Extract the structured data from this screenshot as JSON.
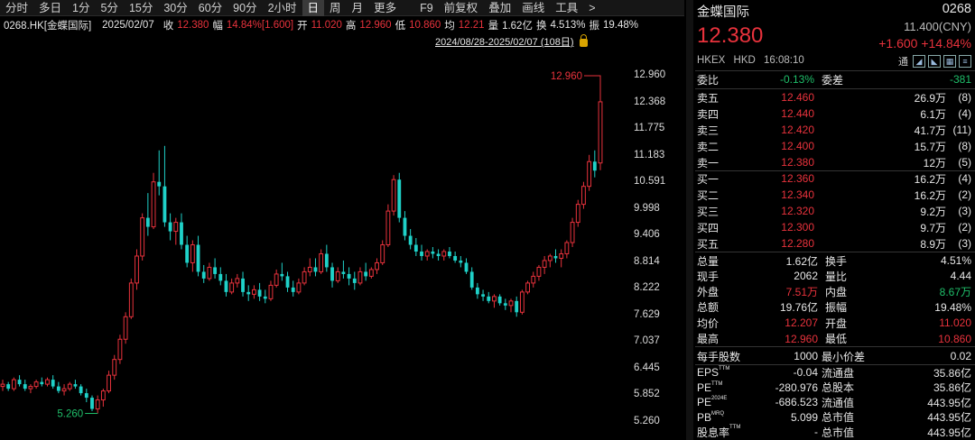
{
  "toolbar": {
    "items": [
      "分时",
      "多日",
      "1分",
      "5分",
      "15分",
      "30分",
      "60分",
      "90分",
      "2小时",
      "日",
      "周",
      "月",
      "更多"
    ],
    "active": "日",
    "extra": [
      "F9",
      "前复权",
      "叠加",
      "画线",
      "工具"
    ],
    "more_arrow": ">"
  },
  "infobar": {
    "symbol": "0268.HK[金蝶国际]",
    "date": "2025/02/07",
    "close_label": "收",
    "close": "12.380",
    "amp_label": "幅",
    "amp": "14.84%[1.600]",
    "open_label": "开",
    "open": "11.020",
    "high_label": "高",
    "high": "12.960",
    "low_label": "低",
    "low": "10.860",
    "avg_label": "均",
    "avg": "12.21",
    "vol_label": "量",
    "vol": "1.62亿",
    "turn_label": "换",
    "turn": "4.513%",
    "swing_label": "振",
    "swing": "19.48%"
  },
  "range": {
    "text": "2024/08/28-2025/02/07 (108日)"
  },
  "chart_data": {
    "type": "candlestick",
    "yticks": [
      "12.960",
      "12.368",
      "11.775",
      "11.183",
      "10.591",
      "9.998",
      "9.406",
      "8.814",
      "8.222",
      "7.629",
      "7.037",
      "6.445",
      "5.852",
      "5.260"
    ],
    "ylim": [
      5.26,
      12.96
    ],
    "max_label": "12.960",
    "min_label": "5.260",
    "colors": {
      "up": "#e8323c",
      "down": "#1fd1c8",
      "text_red": "#e8323c",
      "text_green": "#1fbf6a"
    },
    "candles": [
      [
        6.05,
        6.2,
        5.95,
        6.1
      ],
      [
        6.1,
        6.15,
        5.95,
        6.0
      ],
      [
        6.0,
        6.25,
        5.95,
        6.2
      ],
      [
        6.2,
        6.3,
        6.05,
        6.1
      ],
      [
        6.1,
        6.2,
        5.95,
        6.0
      ],
      [
        6.0,
        6.1,
        5.9,
        6.05
      ],
      [
        6.05,
        6.2,
        6.0,
        6.15
      ],
      [
        6.15,
        6.25,
        6.05,
        6.1
      ],
      [
        6.1,
        6.25,
        6.05,
        6.2
      ],
      [
        6.2,
        6.3,
        6.0,
        6.05
      ],
      [
        6.05,
        6.15,
        5.9,
        5.95
      ],
      [
        5.95,
        6.1,
        5.85,
        6.0
      ],
      [
        6.0,
        6.15,
        5.95,
        6.1
      ],
      [
        6.1,
        6.2,
        6.0,
        6.05
      ],
      [
        6.05,
        6.1,
        5.85,
        5.9
      ],
      [
        5.9,
        6.0,
        5.7,
        5.8
      ],
      [
        5.8,
        5.85,
        5.5,
        5.55
      ],
      [
        5.55,
        5.85,
        5.45,
        5.75
      ],
      [
        5.75,
        6.0,
        5.6,
        5.95
      ],
      [
        5.95,
        6.4,
        5.9,
        6.3
      ],
      [
        6.3,
        6.75,
        6.2,
        6.65
      ],
      [
        6.65,
        7.2,
        6.55,
        7.1
      ],
      [
        7.1,
        7.7,
        7.0,
        7.6
      ],
      [
        7.6,
        8.45,
        7.55,
        8.35
      ],
      [
        8.35,
        9.1,
        8.2,
        8.95
      ],
      [
        8.95,
        9.9,
        8.85,
        9.8
      ],
      [
        9.8,
        10.35,
        9.4,
        9.6
      ],
      [
        9.6,
        10.8,
        9.55,
        10.6
      ],
      [
        10.6,
        11.3,
        10.3,
        10.5
      ],
      [
        10.5,
        11.4,
        9.6,
        9.7
      ],
      [
        9.7,
        9.9,
        9.3,
        9.5
      ],
      [
        9.5,
        9.8,
        9.2,
        9.7
      ],
      [
        9.7,
        9.9,
        9.1,
        9.2
      ],
      [
        9.2,
        9.4,
        8.7,
        8.8
      ],
      [
        8.8,
        9.3,
        8.6,
        9.2
      ],
      [
        9.2,
        9.4,
        8.5,
        8.6
      ],
      [
        8.6,
        8.75,
        8.35,
        8.45
      ],
      [
        8.45,
        8.8,
        8.4,
        8.7
      ],
      [
        8.7,
        8.9,
        8.45,
        8.55
      ],
      [
        8.55,
        8.7,
        8.3,
        8.4
      ],
      [
        8.4,
        8.55,
        8.05,
        8.15
      ],
      [
        8.15,
        8.45,
        8.1,
        8.35
      ],
      [
        8.35,
        8.55,
        8.25,
        8.45
      ],
      [
        8.45,
        8.6,
        8.05,
        8.15
      ],
      [
        8.15,
        8.3,
        7.95,
        8.1
      ],
      [
        8.1,
        8.3,
        8.0,
        8.2
      ],
      [
        8.2,
        8.35,
        7.95,
        8.05
      ],
      [
        8.05,
        8.2,
        7.9,
        8.0
      ],
      [
        8.0,
        8.4,
        7.95,
        8.3
      ],
      [
        8.3,
        8.65,
        8.25,
        8.55
      ],
      [
        8.55,
        8.8,
        8.4,
        8.5
      ],
      [
        8.5,
        8.6,
        8.15,
        8.25
      ],
      [
        8.25,
        8.4,
        8.05,
        8.15
      ],
      [
        8.15,
        8.45,
        8.1,
        8.35
      ],
      [
        8.35,
        8.7,
        8.3,
        8.6
      ],
      [
        8.6,
        8.9,
        8.5,
        8.7
      ],
      [
        8.7,
        8.9,
        8.5,
        8.6
      ],
      [
        8.6,
        9.1,
        8.55,
        9.0
      ],
      [
        9.0,
        9.2,
        8.6,
        8.7
      ],
      [
        8.7,
        8.8,
        8.25,
        8.4
      ],
      [
        8.4,
        8.7,
        8.35,
        8.6
      ],
      [
        8.6,
        8.85,
        8.45,
        8.55
      ],
      [
        8.55,
        8.7,
        8.3,
        8.45
      ],
      [
        8.45,
        8.6,
        8.2,
        8.35
      ],
      [
        8.35,
        8.7,
        8.3,
        8.6
      ],
      [
        8.6,
        8.8,
        8.4,
        8.5
      ],
      [
        8.5,
        8.7,
        8.45,
        8.65
      ],
      [
        8.65,
        8.9,
        8.55,
        8.8
      ],
      [
        8.8,
        9.3,
        8.75,
        9.2
      ],
      [
        9.2,
        10.1,
        9.15,
        9.95
      ],
      [
        9.95,
        10.75,
        9.85,
        10.65
      ],
      [
        10.65,
        10.8,
        9.7,
        9.8
      ],
      [
        9.8,
        9.95,
        9.3,
        9.4
      ],
      [
        9.4,
        9.55,
        9.1,
        9.2
      ],
      [
        9.2,
        9.35,
        8.95,
        9.05
      ],
      [
        9.05,
        9.2,
        8.85,
        8.95
      ],
      [
        8.95,
        9.1,
        8.85,
        9.05
      ],
      [
        9.05,
        9.15,
        8.9,
        9.0
      ],
      [
        9.0,
        9.1,
        8.85,
        8.95
      ],
      [
        8.95,
        9.1,
        8.85,
        9.05
      ],
      [
        9.05,
        9.15,
        8.9,
        8.95
      ],
      [
        8.95,
        9.05,
        8.8,
        8.85
      ],
      [
        8.85,
        8.95,
        8.7,
        8.8
      ],
      [
        8.8,
        8.9,
        8.55,
        8.6
      ],
      [
        8.6,
        8.7,
        8.2,
        8.25
      ],
      [
        8.25,
        8.35,
        8.0,
        8.1
      ],
      [
        8.1,
        8.2,
        7.95,
        8.05
      ],
      [
        8.05,
        8.15,
        7.9,
        7.95
      ],
      [
        7.95,
        8.1,
        7.8,
        8.05
      ],
      [
        8.05,
        8.1,
        7.85,
        7.9
      ],
      [
        7.9,
        8.0,
        7.75,
        7.85
      ],
      [
        7.85,
        8.0,
        7.7,
        7.95
      ],
      [
        7.95,
        8.05,
        7.6,
        7.7
      ],
      [
        7.7,
        8.2,
        7.65,
        8.15
      ],
      [
        8.15,
        8.4,
        8.1,
        8.35
      ],
      [
        8.35,
        8.6,
        8.25,
        8.5
      ],
      [
        8.5,
        8.75,
        8.4,
        8.7
      ],
      [
        8.7,
        8.95,
        8.55,
        8.85
      ],
      [
        8.85,
        9.0,
        8.7,
        8.95
      ],
      [
        8.95,
        9.1,
        8.8,
        8.9
      ],
      [
        8.9,
        9.1,
        8.7,
        9.0
      ],
      [
        9.0,
        9.3,
        8.9,
        9.25
      ],
      [
        9.25,
        9.8,
        9.15,
        9.7
      ],
      [
        9.7,
        10.2,
        9.6,
        10.1
      ],
      [
        10.1,
        10.6,
        10.0,
        10.5
      ],
      [
        10.5,
        11.2,
        10.4,
        11.05
      ],
      [
        11.05,
        11.3,
        10.7,
        10.85
      ],
      [
        11.02,
        12.96,
        10.86,
        12.38
      ]
    ]
  },
  "quote": {
    "name": "金蝶国际",
    "code": "0268",
    "prev": "11.400(CNY)",
    "price": "12.380",
    "change": "+1.600 +14.84%",
    "market": "HKEX",
    "currency": "HKD",
    "time": "16:08:10",
    "tong": "通",
    "ratio_label": "委比",
    "ratio": "-0.13%",
    "diff_label": "委差",
    "diff": "-381"
  },
  "asks": [
    {
      "label": "卖五",
      "price": "12.460",
      "vol": "26.9万",
      "count": "(8)"
    },
    {
      "label": "卖四",
      "price": "12.440",
      "vol": "6.1万",
      "count": "(4)"
    },
    {
      "label": "卖三",
      "price": "12.420",
      "vol": "41.7万",
      "count": "(11)"
    },
    {
      "label": "卖二",
      "price": "12.400",
      "vol": "15.7万",
      "count": "(8)"
    },
    {
      "label": "卖一",
      "price": "12.380",
      "vol": "12万",
      "count": "(5)"
    }
  ],
  "bids": [
    {
      "label": "买一",
      "price": "12.360",
      "vol": "16.2万",
      "count": "(4)"
    },
    {
      "label": "买二",
      "price": "12.340",
      "vol": "16.2万",
      "count": "(2)"
    },
    {
      "label": "买三",
      "price": "12.320",
      "vol": "9.2万",
      "count": "(3)"
    },
    {
      "label": "买四",
      "price": "12.300",
      "vol": "9.7万",
      "count": "(2)"
    },
    {
      "label": "买五",
      "price": "12.280",
      "vol": "8.9万",
      "count": "(3)"
    }
  ],
  "stats": [
    {
      "l1": "总量",
      "v1": "1.62亿",
      "c1": "w",
      "l2": "换手",
      "v2": "4.51%",
      "c2": "w"
    },
    {
      "l1": "现手",
      "v1": "2062",
      "c1": "w",
      "l2": "量比",
      "v2": "4.44",
      "c2": "w"
    },
    {
      "l1": "外盘",
      "v1": "7.51万",
      "c1": "r",
      "l2": "内盘",
      "v2": "8.67万",
      "c2": "g"
    },
    {
      "l1": "总额",
      "v1": "19.76亿",
      "c1": "w",
      "l2": "振幅",
      "v2": "19.48%",
      "c2": "w"
    },
    {
      "l1": "均价",
      "v1": "12.207",
      "c1": "r",
      "l2": "开盘",
      "v2": "11.020",
      "c2": "r"
    },
    {
      "l1": "最高",
      "v1": "12.960",
      "c1": "r",
      "l2": "最低",
      "v2": "10.860",
      "c2": "r"
    }
  ],
  "lot": {
    "l1": "每手股数",
    "v1": "1000",
    "l2": "最小价差",
    "v2": "0.02"
  },
  "fund": [
    {
      "l1": "EPS",
      "sup": "TTM",
      "v1": "-0.04",
      "l2": "流通盘",
      "v2": "35.86亿"
    },
    {
      "l1": "PE",
      "sup": "TTM",
      "v1": "-280.976",
      "l2": "总股本",
      "v2": "35.86亿"
    },
    {
      "l1": "PE",
      "sup": "2024E",
      "v1": "-686.523",
      "l2": "流通值",
      "v2": "443.95亿"
    },
    {
      "l1": "PB",
      "sup": "MRQ",
      "v1": "5.099",
      "l2": "总市值",
      "v2": "443.95亿"
    },
    {
      "l1": "股息率",
      "sup": "TTM",
      "v1": "-",
      "l2": "总市值",
      "v2": "443.95亿"
    }
  ]
}
